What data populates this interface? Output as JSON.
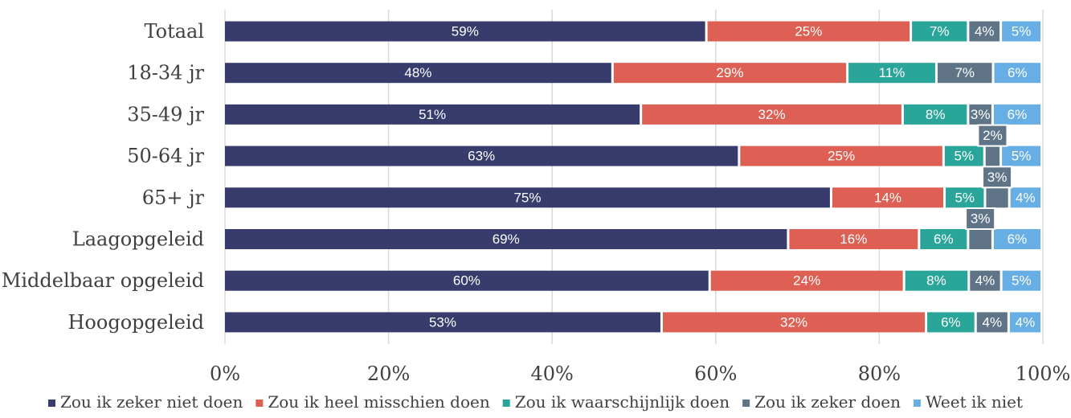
{
  "chart_data": {
    "type": "bar",
    "orientation": "horizontal",
    "stacked": true,
    "categories": [
      "Totaal",
      "18-34 jr",
      "35-49 jr",
      "50-64 jr",
      "65+ jr",
      "Laagopgeleid",
      "Middelbaar opgeleid",
      "Hoogopgeleid"
    ],
    "series": [
      {
        "name": "Zou ik zeker niet doen",
        "color": "#383c6c",
        "values": [
          59,
          48,
          51,
          63,
          75,
          69,
          60,
          53
        ]
      },
      {
        "name": "Zou ik heel misschien doen",
        "color": "#de5f53",
        "values": [
          25,
          29,
          32,
          25,
          14,
          16,
          24,
          32
        ]
      },
      {
        "name": "Zou ik waarschijnlijk doen",
        "color": "#2aa599",
        "values": [
          7,
          11,
          8,
          5,
          5,
          6,
          8,
          6
        ]
      },
      {
        "name": "Zou ik zeker doen",
        "color": "#5f7487",
        "values": [
          4,
          7,
          3,
          2,
          3,
          3,
          4,
          4
        ]
      },
      {
        "name": "Weet ik niet",
        "color": "#66aee3",
        "values": [
          5,
          6,
          6,
          5,
          4,
          6,
          5,
          4
        ]
      }
    ],
    "x_ticks": [
      "0%",
      "20%",
      "40%",
      "60%",
      "80%",
      "100%"
    ],
    "xlim": [
      0,
      100
    ],
    "grid": true,
    "legend": "bottom",
    "title": "",
    "xlabel": "",
    "ylabel": ""
  }
}
